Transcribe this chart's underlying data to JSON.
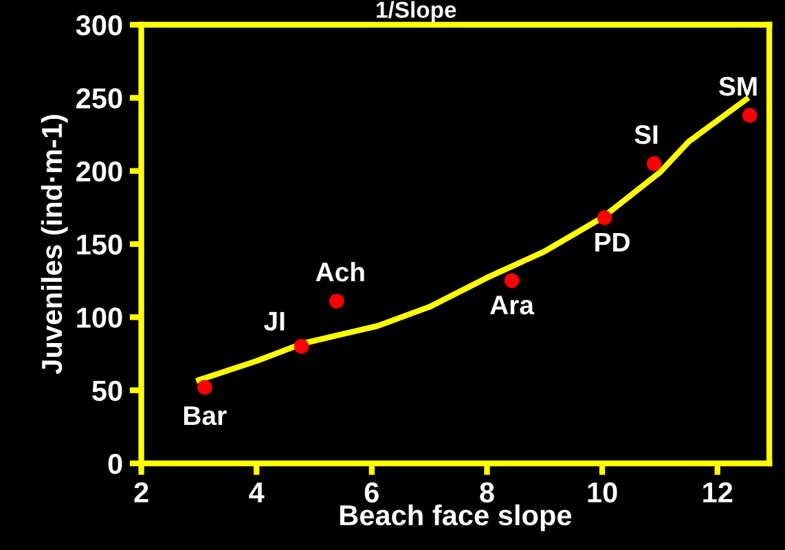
{
  "chart_data": {
    "type": "scatter",
    "title": "1/Slope",
    "xlabel": "Beach face slope",
    "ylabel": "Juveniles (ind·m-1)",
    "xlim": [
      2,
      12.9
    ],
    "xticks": [
      2,
      4,
      6,
      8,
      10,
      12
    ],
    "ylim": [
      0,
      300
    ],
    "yticks": [
      0,
      50,
      100,
      150,
      200,
      250,
      300
    ],
    "grid": false,
    "legend": false,
    "marker": "circle",
    "series": [
      {
        "color": "#ff0000",
        "x": [
          3.1,
          4.78,
          5.39,
          8.43,
          10.04,
          10.9,
          12.56
        ],
        "values": [
          52,
          80,
          111,
          125,
          168,
          205,
          238
        ]
      },
      {
        "type": "line",
        "color": "#ffff00",
        "marker": "none",
        "line_style": "solid",
        "x": [
          3.0,
          4.0,
          4.8,
          6.1,
          7.0,
          8.0,
          9.0,
          10.0,
          11.0,
          11.5,
          12.5
        ],
        "values": [
          57,
          70,
          82,
          94,
          107,
          127,
          145,
          168,
          199,
          220,
          249
        ]
      }
    ],
    "annotations": [
      {
        "text": "Bar",
        "x": 3.1,
        "y": 52
      },
      {
        "text": "JI",
        "x": 4.78,
        "y": 80
      },
      {
        "text": "Ach",
        "x": 5.39,
        "y": 111
      },
      {
        "text": "Ara",
        "x": 8.43,
        "y": 125
      },
      {
        "text": "PD",
        "x": 10.04,
        "y": 168
      },
      {
        "text": "SI",
        "x": 10.9,
        "y": 205
      },
      {
        "text": "SM",
        "x": 12.56,
        "y": 238
      }
    ]
  }
}
